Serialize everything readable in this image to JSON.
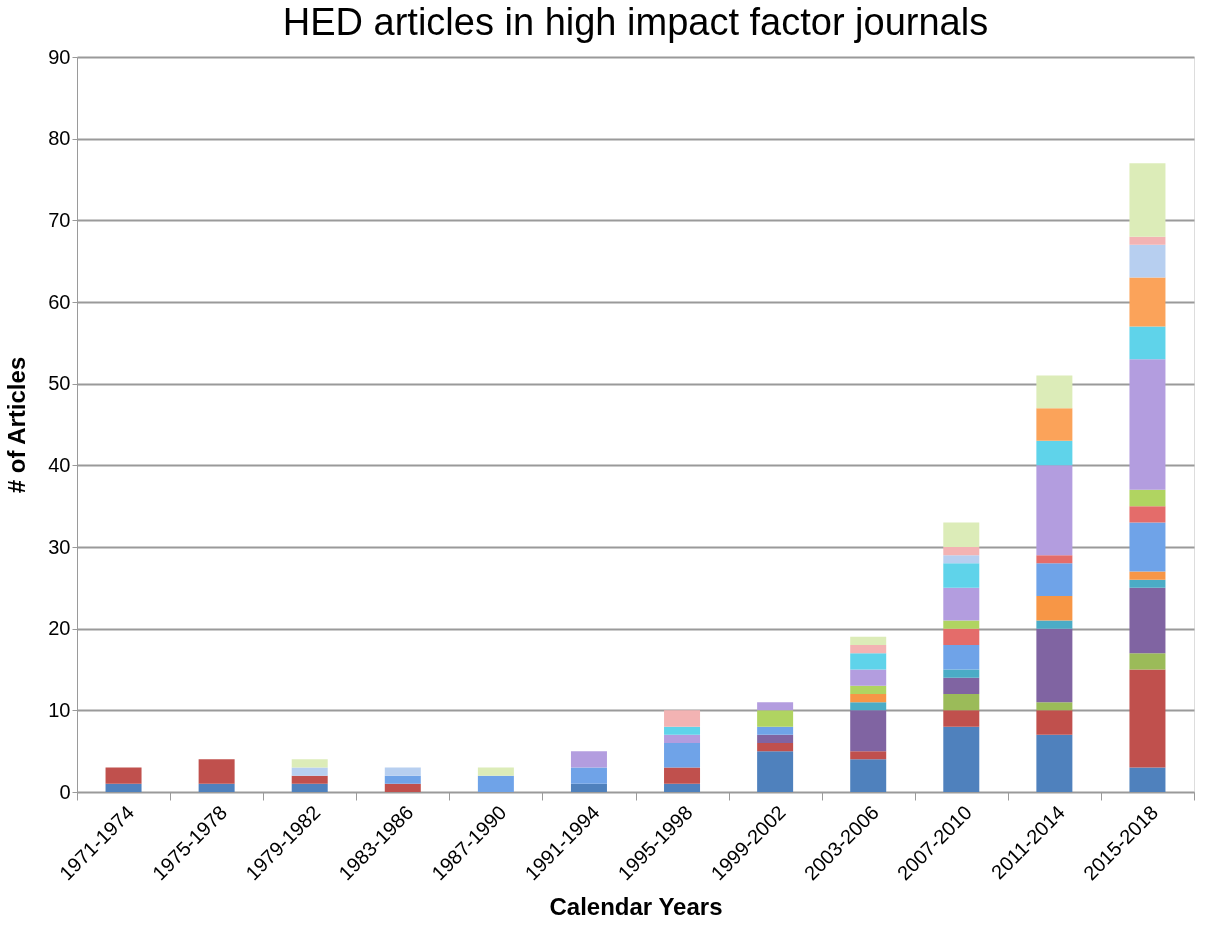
{
  "chart_data": {
    "type": "bar",
    "stacked": true,
    "title": "HED articles in high impact factor journals",
    "xlabel": "Calendar Years",
    "ylabel": "# of Articles",
    "categories": [
      "1971-1974",
      "1975-1978",
      "1979-1982",
      "1983-1986",
      "1987-1990",
      "1991-1994",
      "1995-1998",
      "1999-2002",
      "2003-2006",
      "2007-2010",
      "2011-2014",
      "2015-2018"
    ],
    "ylim": [
      0,
      90
    ],
    "yticks": [
      0,
      10,
      20,
      30,
      40,
      50,
      60,
      70,
      80,
      90
    ],
    "grid": "y",
    "legend": false,
    "series": [
      {
        "color": "#4f81bd",
        "values": [
          1,
          1,
          1,
          null,
          null,
          1,
          1,
          5,
          4,
          8,
          7,
          3
        ]
      },
      {
        "color": "#c0504d",
        "values": [
          2,
          3,
          1,
          1,
          null,
          null,
          2,
          1,
          1,
          2,
          3,
          12
        ]
      },
      {
        "color": "#9bbb59",
        "values": [
          null,
          null,
          null,
          null,
          null,
          null,
          null,
          null,
          null,
          2,
          1,
          2
        ]
      },
      {
        "color": "#8064a2",
        "values": [
          null,
          null,
          null,
          null,
          null,
          null,
          null,
          1,
          5,
          2,
          9,
          8
        ]
      },
      {
        "color": "#4bacc6",
        "values": [
          null,
          null,
          null,
          null,
          null,
          null,
          null,
          null,
          1,
          1,
          1,
          1
        ]
      },
      {
        "color": "#f79646",
        "values": [
          null,
          null,
          null,
          null,
          null,
          null,
          null,
          null,
          1,
          null,
          3,
          1
        ]
      },
      {
        "color": "#6fa3e8",
        "values": [
          null,
          null,
          null,
          1,
          2,
          2,
          3,
          1,
          null,
          3,
          4,
          6
        ]
      },
      {
        "color": "#e46c6a",
        "values": [
          null,
          null,
          null,
          null,
          null,
          null,
          null,
          null,
          null,
          2,
          1,
          2
        ]
      },
      {
        "color": "#b0d461",
        "values": [
          null,
          null,
          null,
          null,
          null,
          null,
          null,
          2,
          1,
          1,
          null,
          2
        ]
      },
      {
        "color": "#b39ddf",
        "values": [
          null,
          null,
          null,
          null,
          null,
          2,
          1,
          1,
          2,
          4,
          11,
          16
        ]
      },
      {
        "color": "#5fd3ea",
        "values": [
          null,
          null,
          null,
          null,
          null,
          null,
          1,
          null,
          2,
          3,
          3,
          4
        ]
      },
      {
        "color": "#fba35a",
        "values": [
          null,
          null,
          null,
          null,
          null,
          null,
          null,
          null,
          null,
          null,
          4,
          6
        ]
      },
      {
        "color": "#b7cff0",
        "values": [
          null,
          null,
          1,
          1,
          null,
          null,
          null,
          null,
          null,
          1,
          null,
          4
        ]
      },
      {
        "color": "#f3b3b3",
        "values": [
          null,
          null,
          null,
          null,
          null,
          null,
          2,
          null,
          1,
          1,
          null,
          1
        ]
      },
      {
        "color": "#dcecb8",
        "values": [
          null,
          null,
          1,
          null,
          1,
          null,
          null,
          null,
          1,
          3,
          4,
          9
        ]
      }
    ]
  }
}
